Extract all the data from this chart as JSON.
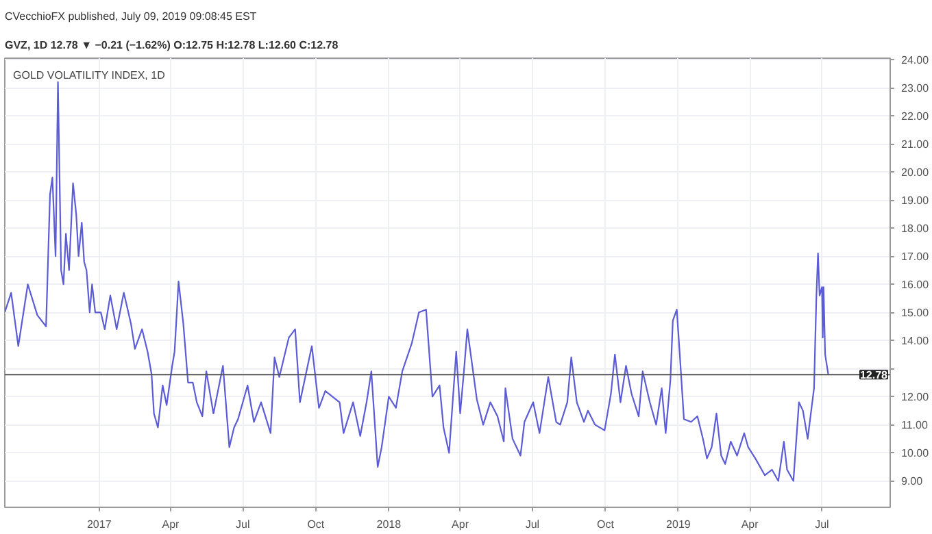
{
  "chart_data": {
    "type": "line",
    "title": "CVecchioFX published, July 09, 2019 09:08:45 EST",
    "subtitle": "GVZ, 1D 12.78 ▼ −0.21 (−1.62%) O:12.75 H:12.78 L:12.60 C:12.78",
    "annotations": [
      "GOLD VOLATILITY INDEX, 1D"
    ],
    "x": [
      "2016-09-04",
      "2016-09-12",
      "2016-09-21",
      "2016-10-03",
      "2016-10-15",
      "2016-10-26",
      "2016-10-31",
      "2016-11-03",
      "2016-11-07",
      "2016-11-10",
      "2016-11-14",
      "2016-11-17",
      "2016-11-20",
      "2016-11-24",
      "2016-11-29",
      "2016-12-03",
      "2016-12-06",
      "2016-12-10",
      "2016-12-13",
      "2016-12-16",
      "2016-12-20",
      "2016-12-23",
      "2016-12-27",
      "2017-01-03",
      "2017-01-08",
      "2017-01-15",
      "2017-01-23",
      "2017-02-01",
      "2017-02-10",
      "2017-02-15",
      "2017-02-24",
      "2017-03-03",
      "2017-03-08",
      "2017-03-11",
      "2017-03-16",
      "2017-03-22",
      "2017-03-27",
      "2017-04-03",
      "2017-04-06",
      "2017-04-11",
      "2017-04-17",
      "2017-04-23",
      "2017-04-29",
      "2017-05-04",
      "2017-05-11",
      "2017-05-16",
      "2017-05-25",
      "2017-06-06",
      "2017-06-14",
      "2017-06-20",
      "2017-06-25",
      "2017-07-07",
      "2017-07-15",
      "2017-07-24",
      "2017-08-05",
      "2017-08-10",
      "2017-08-16",
      "2017-08-28",
      "2017-09-05",
      "2017-09-11",
      "2017-09-26",
      "2017-10-05",
      "2017-10-13",
      "2017-10-31",
      "2017-11-05",
      "2017-11-17",
      "2017-11-26",
      "2017-12-04",
      "2017-12-10",
      "2017-12-18",
      "2017-12-23",
      "2018-01-01",
      "2018-01-10",
      "2018-01-18",
      "2018-01-30",
      "2018-02-08",
      "2018-02-17",
      "2018-02-25",
      "2018-03-06",
      "2018-03-11",
      "2018-03-18",
      "2018-03-27",
      "2018-04-01",
      "2018-04-06",
      "2018-04-10",
      "2018-04-22",
      "2018-04-30",
      "2018-05-09",
      "2018-05-18",
      "2018-05-26",
      "2018-05-28",
      "2018-06-06",
      "2018-06-16",
      "2018-06-21",
      "2018-07-02",
      "2018-07-10",
      "2018-07-21",
      "2018-07-31",
      "2018-08-05",
      "2018-08-14",
      "2018-08-19",
      "2018-08-26",
      "2018-09-04",
      "2018-09-09",
      "2018-09-18",
      "2018-09-30",
      "2018-10-08",
      "2018-10-13",
      "2018-10-20",
      "2018-10-27",
      "2018-11-03",
      "2018-11-12",
      "2018-11-17",
      "2018-11-26",
      "2018-12-04",
      "2018-12-11",
      "2018-12-16",
      "2018-12-22",
      "2018-12-25",
      "2018-12-30",
      "2019-01-03",
      "2019-01-08",
      "2019-01-17",
      "2019-01-25",
      "2019-02-01",
      "2019-02-06",
      "2019-02-12",
      "2019-02-18",
      "2019-02-24",
      "2019-03-01",
      "2019-03-08",
      "2019-03-16",
      "2019-03-25",
      "2019-03-30",
      "2019-04-08",
      "2019-04-20",
      "2019-04-29",
      "2019-05-07",
      "2019-05-14",
      "2019-05-18",
      "2019-05-26",
      "2019-06-02",
      "2019-06-07",
      "2019-06-13",
      "2019-06-21",
      "2019-06-24",
      "2019-06-26",
      "2019-06-28",
      "2019-07-01",
      "2019-07-02",
      "2019-07-03",
      "2019-07-05",
      "2019-07-09"
    ],
    "series": [
      {
        "color": "#5c5cd6",
        "values": [
          15.0,
          15.7,
          13.8,
          16.0,
          14.9,
          14.5,
          19.2,
          19.8,
          17.0,
          23.2,
          16.5,
          16.0,
          17.8,
          16.5,
          19.6,
          18.5,
          17.0,
          18.2,
          16.8,
          16.5,
          15.0,
          16.0,
          15.0,
          15.0,
          14.4,
          15.6,
          14.4,
          15.7,
          14.6,
          13.7,
          14.4,
          13.6,
          12.8,
          11.4,
          10.9,
          12.4,
          11.7,
          13.1,
          13.6,
          16.1,
          14.6,
          12.5,
          12.5,
          11.8,
          11.3,
          12.9,
          11.4,
          13.1,
          10.2,
          10.9,
          11.2,
          12.4,
          11.1,
          11.8,
          10.7,
          13.4,
          12.7,
          14.1,
          14.4,
          11.8,
          13.8,
          11.6,
          12.2,
          11.8,
          10.7,
          11.8,
          10.6,
          11.8,
          12.9,
          9.5,
          10.2,
          12.0,
          11.6,
          12.9,
          13.9,
          15.0,
          15.1,
          12.0,
          12.4,
          10.9,
          10.0,
          13.6,
          11.4,
          13.0,
          14.4,
          11.9,
          11.0,
          11.8,
          11.3,
          10.4,
          12.3,
          10.5,
          9.9,
          11.1,
          11.8,
          10.7,
          12.7,
          11.1,
          11.0,
          11.8,
          13.4,
          11.8,
          11.1,
          11.5,
          11.0,
          10.8,
          12.1,
          13.5,
          11.8,
          13.1,
          12.1,
          11.3,
          12.9,
          11.8,
          11.0,
          12.3,
          10.7,
          12.6,
          14.7,
          15.1,
          13.4,
          11.2,
          11.1,
          11.3,
          10.5,
          9.8,
          10.2,
          11.4,
          9.9,
          9.6,
          10.4,
          9.9,
          10.7,
          10.2,
          9.8,
          9.2,
          9.4,
          9.0,
          10.4,
          9.4,
          9.0,
          11.8,
          11.5,
          10.5,
          12.3,
          15.6,
          17.1,
          15.6,
          15.9,
          14.1,
          15.9,
          13.5,
          12.78
        ]
      }
    ],
    "xlim": [
      "2016-09-04",
      "2019-09-25"
    ],
    "xticks": [
      {
        "value": "2017-01-01",
        "label": "2017"
      },
      {
        "value": "2017-04-01",
        "label": "Apr"
      },
      {
        "value": "2017-07-01",
        "label": "Jul"
      },
      {
        "value": "2017-10-01",
        "label": "Oct"
      },
      {
        "value": "2018-01-01",
        "label": "2018"
      },
      {
        "value": "2018-04-01",
        "label": "Apr"
      },
      {
        "value": "2018-07-01",
        "label": "Jul"
      },
      {
        "value": "2018-10-01",
        "label": "Oct"
      },
      {
        "value": "2019-01-01",
        "label": "2019"
      },
      {
        "value": "2019-04-01",
        "label": "Apr"
      },
      {
        "value": "2019-07-01",
        "label": "Jul"
      }
    ],
    "ylim": [
      8.06,
      24.05
    ],
    "yticks": [
      {
        "value": 9,
        "label": "9.00"
      },
      {
        "value": 10,
        "label": "10.00"
      },
      {
        "value": 11,
        "label": "11.00"
      },
      {
        "value": 12,
        "label": "12.00"
      },
      {
        "value": 13,
        "label": null
      },
      {
        "value": 14,
        "label": "14.00"
      },
      {
        "value": 15,
        "label": "15.00"
      },
      {
        "value": 16,
        "label": "16.00"
      },
      {
        "value": 17,
        "label": "17.00"
      },
      {
        "value": 18,
        "label": "18.00"
      },
      {
        "value": 19,
        "label": "19.00"
      },
      {
        "value": 20,
        "label": "20.00"
      },
      {
        "value": 21,
        "label": "21.00"
      },
      {
        "value": 22,
        "label": "22.00"
      },
      {
        "value": 23,
        "label": "23.00"
      },
      {
        "value": 24,
        "label": "24.00"
      }
    ],
    "ref_lines": [
      {
        "axis": "y",
        "value": 12.78,
        "label": "12.78",
        "color": "#555555"
      }
    ],
    "grid": true,
    "marker": "none",
    "line_style": "solid"
  }
}
